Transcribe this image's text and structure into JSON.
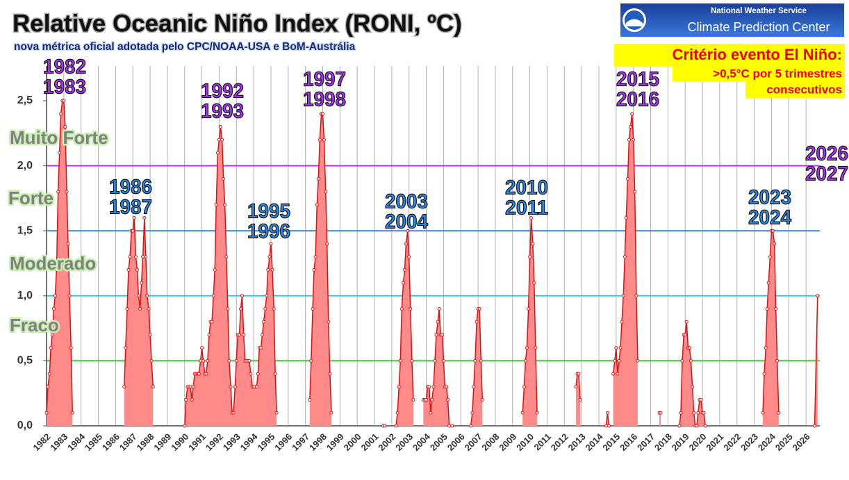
{
  "chart_data": {
    "type": "area",
    "title": "Relative Oceanic Niño Index (RONI, ºC)",
    "subtitle": "nova métrica oficial adotada pelo CPC/NOAA-USA e BoM-Austrália",
    "agency": [
      "National Weather Service",
      "Climate Prediction Center"
    ],
    "criterion": [
      "Critério evento El Niño:",
      ">0,5°C por 5 trimestres",
      "consecutivos"
    ],
    "bands": [
      "Fraco",
      "Moderado",
      "Forte",
      "Muito Forte"
    ],
    "reference_lines": [
      {
        "value": 0.5,
        "color": "#33cc33"
      },
      {
        "value": 1.0,
        "color": "#33ccee"
      },
      {
        "value": 1.5,
        "color": "#2a8ae0"
      },
      {
        "value": 2.0,
        "color": "#b040d8"
      }
    ],
    "annotations": [
      {
        "text": [
          "1982",
          "1983"
        ],
        "color": "#a832f0"
      },
      {
        "text": [
          "1986",
          "1987"
        ],
        "color": "#2a8ae6"
      },
      {
        "text": [
          "1992",
          "1993"
        ],
        "color": "#a832f0"
      },
      {
        "text": [
          "1995",
          "1996"
        ],
        "color": "#2a8ae6"
      },
      {
        "text": [
          "1997",
          "1998"
        ],
        "color": "#a832f0"
      },
      {
        "text": [
          "2003",
          "2004"
        ],
        "color": "#2a8ae6"
      },
      {
        "text": [
          "2010",
          "2011"
        ],
        "color": "#2a8ae6"
      },
      {
        "text": [
          "2015",
          "2016"
        ],
        "color": "#a832f0"
      },
      {
        "text": [
          "2023",
          "2024"
        ],
        "color": "#2a8ae6"
      },
      {
        "text": [
          "2026",
          "2027"
        ],
        "color": "#a832f0"
      }
    ],
    "xlim": [
      1982,
      2026.8
    ],
    "xticks": [
      1982,
      1983,
      1984,
      1985,
      1986,
      1987,
      1988,
      1989,
      1990,
      1991,
      1992,
      1993,
      1994,
      1995,
      1996,
      1997,
      1998,
      1999,
      2000,
      2001,
      2002,
      2003,
      2004,
      2005,
      2006,
      2007,
      2008,
      2009,
      2010,
      2011,
      2012,
      2013,
      2014,
      2015,
      2016,
      2017,
      2018,
      2019,
      2020,
      2021,
      2022,
      2023,
      2024,
      2025,
      2026
    ],
    "ylim": [
      0,
      2.5
    ],
    "yticks": [
      {
        "value": 0,
        "label": "0,0"
      },
      {
        "value": 0.5,
        "label": "0,5"
      },
      {
        "value": 1.0,
        "label": "1,0"
      },
      {
        "value": 1.5,
        "label": "1,5"
      },
      {
        "value": 2.0,
        "label": "2,0"
      },
      {
        "value": 2.5,
        "label": "2,5"
      }
    ],
    "grid": true,
    "line_color": "#e01010",
    "fill_color": "#ff8a8a",
    "x": [
      1982.0,
      1982.08,
      1982.17,
      1982.25,
      1982.33,
      1982.42,
      1982.5,
      1982.58,
      1982.67,
      1982.75,
      1982.83,
      1982.92,
      1983.0,
      1983.08,
      1983.17,
      1983.25,
      1983.33,
      1983.42,
      1983.5,
      null,
      1986.5,
      1986.58,
      1986.67,
      1986.75,
      1986.83,
      1986.92,
      1987.0,
      1987.08,
      1987.17,
      1987.25,
      1987.33,
      1987.42,
      1987.5,
      1987.58,
      1987.67,
      1987.75,
      1987.83,
      1987.92,
      1988.0,
      1988.08,
      1988.17,
      null,
      1990.0,
      1990.08,
      1990.17,
      1990.25,
      1990.33,
      1990.42,
      1990.5,
      1990.58,
      1990.67,
      1990.75,
      1990.83,
      1990.92,
      1991.0,
      1991.08,
      1991.17,
      1991.25,
      1991.33,
      1991.42,
      1991.5,
      1991.58,
      1991.67,
      1991.75,
      1991.83,
      1991.92,
      1992.0,
      1992.08,
      1992.17,
      1992.25,
      1992.33,
      1992.42,
      1992.5,
      1992.58,
      1992.67,
      1992.75,
      1992.83,
      1992.92,
      1993.0,
      1993.08,
      1993.17,
      1993.25,
      1993.33,
      1993.42,
      1993.5,
      1993.58,
      1993.67,
      1993.75,
      1993.83,
      1993.92,
      1994.0,
      1994.08,
      1994.17,
      1994.25,
      1994.33,
      1994.42,
      1994.5,
      1994.58,
      1994.67,
      1994.75,
      1994.83,
      1994.92,
      1995.0,
      1995.08,
      1995.17,
      1995.25,
      1995.33,
      null,
      1997.25,
      1997.33,
      1997.42,
      1997.5,
      1997.58,
      1997.67,
      1997.75,
      1997.83,
      1997.92,
      1998.0,
      1998.08,
      1998.17,
      1998.25,
      1998.33,
      1998.42,
      1998.5,
      null,
      2001.5,
      2001.58,
      null,
      2002.25,
      2002.33,
      2002.42,
      2002.5,
      2002.58,
      2002.67,
      2002.75,
      2002.83,
      2002.92,
      2003.0,
      2003.08,
      2003.17,
      2003.25,
      null,
      2003.83,
      2003.92,
      2004.0,
      2004.08,
      2004.17,
      2004.25,
      2004.33,
      2004.42,
      2004.5,
      2004.58,
      2004.67,
      2004.75,
      2004.83,
      2004.92,
      2005.0,
      2005.08,
      2005.17,
      2005.25,
      2005.33,
      null,
      2005.5,
      null,
      2006.58,
      2006.67,
      2006.75,
      2006.83,
      2006.92,
      2007.0,
      2007.08,
      2007.17,
      2007.25,
      null,
      2009.58,
      2009.67,
      2009.75,
      2009.83,
      2009.92,
      2010.0,
      2010.08,
      2010.17,
      2010.25,
      2010.33,
      2010.42,
      null,
      2012.67,
      2012.75,
      2012.83,
      2012.92,
      null,
      2014.42,
      2014.5,
      2014.58,
      null,
      2014.83,
      2014.92,
      2015.0,
      2015.08,
      2015.17,
      2015.25,
      2015.33,
      2015.42,
      2015.5,
      2015.58,
      2015.67,
      2015.75,
      2015.83,
      2015.92,
      2016.0,
      2016.08,
      2016.17,
      2016.25,
      null,
      2017.5,
      2017.58,
      null,
      2018.67,
      2018.75,
      2018.83,
      2018.92,
      2019.0,
      2019.08,
      2019.17,
      2019.25,
      2019.33,
      2019.42,
      2019.5,
      2019.58,
      2019.67,
      2019.75,
      2019.83,
      2019.92,
      2020.0,
      2020.08,
      2020.17,
      null,
      2023.5,
      2023.58,
      2023.67,
      2023.75,
      2023.83,
      2023.92,
      2024.0,
      2024.08,
      2024.17,
      2024.25,
      2024.33,
      2024.42,
      null,
      2026.5,
      2026.67
    ],
    "values": [
      0.1,
      0.3,
      0.4,
      0.6,
      0.7,
      0.9,
      1.0,
      1.2,
      1.8,
      2.1,
      2.4,
      2.5,
      2.5,
      2.3,
      1.8,
      1.4,
      1.0,
      0.6,
      0.1,
      null,
      0.3,
      0.6,
      0.9,
      1.2,
      1.3,
      1.5,
      1.5,
      1.6,
      1.3,
      1.2,
      1.0,
      0.9,
      1.1,
      1.3,
      1.6,
      1.3,
      1.0,
      0.9,
      0.7,
      0.5,
      0.3,
      null,
      0.0,
      0.2,
      0.3,
      0.3,
      0.3,
      0.2,
      0.3,
      0.4,
      0.4,
      0.4,
      0.4,
      0.5,
      0.6,
      0.5,
      0.4,
      0.4,
      0.5,
      0.7,
      0.8,
      0.8,
      1.0,
      1.2,
      1.7,
      2.1,
      2.2,
      2.3,
      2.2,
      1.9,
      1.7,
      1.3,
      0.9,
      0.5,
      0.3,
      0.1,
      0.1,
      0.3,
      0.5,
      0.7,
      0.7,
      0.9,
      1.0,
      0.7,
      0.5,
      0.5,
      0.5,
      0.5,
      0.4,
      0.3,
      0.3,
      0.3,
      0.3,
      0.4,
      0.6,
      0.6,
      0.7,
      0.8,
      0.9,
      1.0,
      1.2,
      1.3,
      1.4,
      1.2,
      0.9,
      0.4,
      0.1,
      null,
      0.2,
      0.5,
      0.9,
      1.2,
      1.3,
      1.7,
      1.9,
      2.2,
      2.4,
      2.4,
      2.2,
      1.8,
      1.4,
      0.8,
      0.4,
      0.1,
      null,
      0.0,
      0.0,
      null,
      0.0,
      0.1,
      0.3,
      0.5,
      0.9,
      1.1,
      1.2,
      1.4,
      1.5,
      1.3,
      0.9,
      0.5,
      0.2,
      null,
      0.2,
      0.2,
      0.2,
      0.3,
      0.3,
      0.1,
      0.2,
      0.3,
      0.5,
      0.7,
      0.8,
      0.9,
      0.7,
      0.7,
      0.5,
      0.3,
      0.3,
      0.2,
      0.0,
      null,
      0.0,
      null,
      0.0,
      0.1,
      0.3,
      0.5,
      0.8,
      0.9,
      0.9,
      0.5,
      0.2,
      null,
      0.1,
      0.3,
      0.5,
      0.6,
      0.9,
      1.3,
      1.6,
      1.4,
      1.1,
      0.6,
      0.1,
      null,
      0.3,
      0.4,
      0.4,
      0.2,
      null,
      0.0,
      0.1,
      0.0,
      null,
      0.4,
      0.5,
      0.6,
      0.4,
      0.5,
      0.6,
      0.8,
      1.0,
      1.3,
      1.6,
      1.9,
      2.2,
      2.3,
      2.4,
      2.2,
      1.8,
      1.0,
      0.5,
      null,
      0.1,
      0.1,
      null,
      0.0,
      0.1,
      0.5,
      0.7,
      0.7,
      0.8,
      0.6,
      0.6,
      0.5,
      0.3,
      0.1,
      0.0,
      0.0,
      0.1,
      0.2,
      0.2,
      0.1,
      0.1,
      0.0,
      null,
      0.1,
      0.4,
      0.6,
      0.9,
      1.1,
      1.3,
      1.5,
      1.5,
      1.4,
      0.9,
      0.5,
      0.1,
      null,
      0.0,
      1.0
    ]
  }
}
